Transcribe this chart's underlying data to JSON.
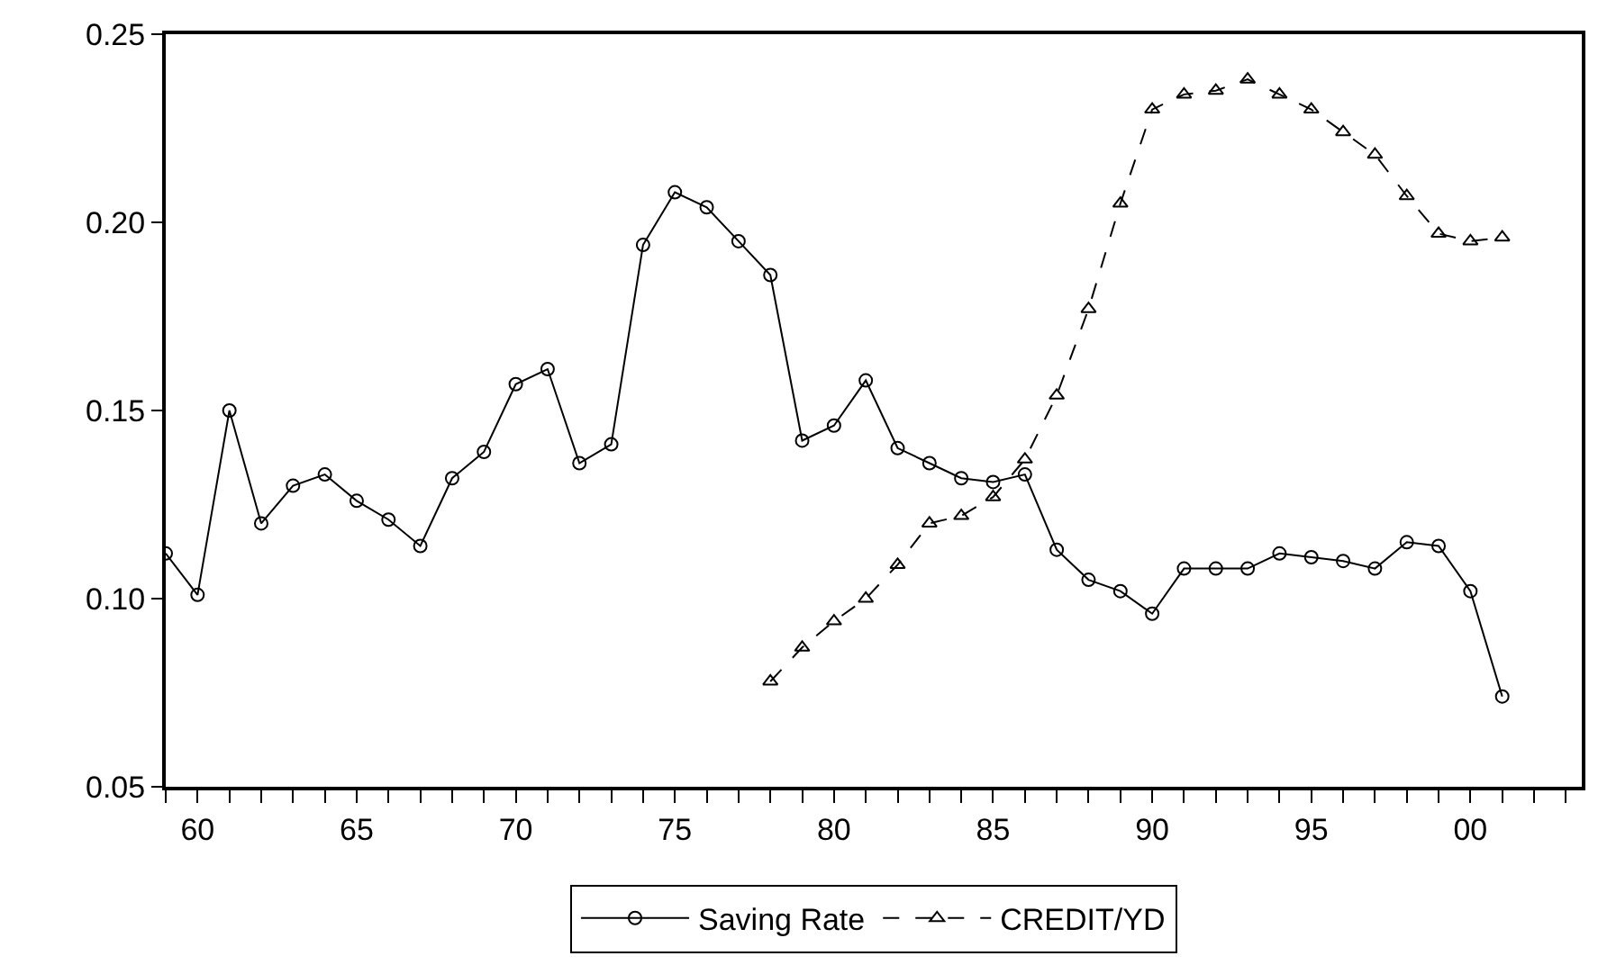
{
  "chart_data": {
    "type": "line",
    "x": [
      1959,
      1960,
      1961,
      1962,
      1963,
      1964,
      1965,
      1966,
      1967,
      1968,
      1969,
      1970,
      1971,
      1972,
      1973,
      1974,
      1975,
      1976,
      1977,
      1978,
      1979,
      1980,
      1981,
      1982,
      1983,
      1984,
      1985,
      1986,
      1987,
      1988,
      1989,
      1990,
      1991,
      1992,
      1993,
      1994,
      1995,
      1996,
      1997,
      1998,
      1999,
      2000,
      2001
    ],
    "series": [
      {
        "name": "Saving Rate",
        "color": "#000000",
        "marker": "circle",
        "line_style": "solid",
        "values": [
          0.112,
          0.101,
          0.15,
          0.12,
          0.13,
          0.133,
          0.126,
          0.121,
          0.114,
          0.132,
          0.139,
          0.157,
          0.161,
          0.136,
          0.141,
          0.194,
          0.208,
          0.204,
          0.195,
          0.186,
          0.142,
          0.146,
          0.158,
          0.14,
          0.136,
          0.132,
          0.131,
          0.133,
          0.113,
          0.105,
          0.102,
          0.096,
          0.108,
          0.108,
          0.108,
          0.112,
          0.111,
          0.11,
          0.108,
          0.115,
          0.114,
          0.102,
          0.074
        ]
      },
      {
        "name": "CREDIT/YD",
        "color": "#000000",
        "marker": "triangle",
        "line_style": "dashed",
        "x": [
          1978,
          1979,
          1980,
          1981,
          1982,
          1983,
          1984,
          1985,
          1986,
          1987,
          1988,
          1989,
          1990,
          1991,
          1992,
          1993,
          1994,
          1995,
          1996,
          1997,
          1998,
          1999,
          2000,
          2001
        ],
        "values": [
          0.078,
          0.087,
          0.094,
          0.1,
          0.109,
          0.12,
          0.122,
          0.127,
          0.137,
          0.154,
          0.177,
          0.205,
          0.23,
          0.234,
          0.235,
          0.238,
          0.234,
          0.23,
          0.224,
          0.218,
          0.207,
          0.197,
          0.195,
          0.196
        ]
      }
    ],
    "xlim": [
      1959,
      2003.5
    ],
    "xticks": [
      {
        "value": 1959,
        "label": null
      },
      {
        "value": 1960,
        "label": "60"
      },
      {
        "value": 1961,
        "label": null
      },
      {
        "value": 1962,
        "label": null
      },
      {
        "value": 1963,
        "label": null
      },
      {
        "value": 1964,
        "label": null
      },
      {
        "value": 1965,
        "label": "65"
      },
      {
        "value": 1966,
        "label": null
      },
      {
        "value": 1967,
        "label": null
      },
      {
        "value": 1968,
        "label": null
      },
      {
        "value": 1969,
        "label": null
      },
      {
        "value": 1970,
        "label": "70"
      },
      {
        "value": 1971,
        "label": null
      },
      {
        "value": 1972,
        "label": null
      },
      {
        "value": 1973,
        "label": null
      },
      {
        "value": 1974,
        "label": null
      },
      {
        "value": 1975,
        "label": "75"
      },
      {
        "value": 1976,
        "label": null
      },
      {
        "value": 1977,
        "label": null
      },
      {
        "value": 1978,
        "label": null
      },
      {
        "value": 1979,
        "label": null
      },
      {
        "value": 1980,
        "label": "80"
      },
      {
        "value": 1981,
        "label": null
      },
      {
        "value": 1982,
        "label": null
      },
      {
        "value": 1983,
        "label": null
      },
      {
        "value": 1984,
        "label": null
      },
      {
        "value": 1985,
        "label": "85"
      },
      {
        "value": 1986,
        "label": null
      },
      {
        "value": 1987,
        "label": null
      },
      {
        "value": 1988,
        "label": null
      },
      {
        "value": 1989,
        "label": null
      },
      {
        "value": 1990,
        "label": "90"
      },
      {
        "value": 1991,
        "label": null
      },
      {
        "value": 1992,
        "label": null
      },
      {
        "value": 1993,
        "label": null
      },
      {
        "value": 1994,
        "label": null
      },
      {
        "value": 1995,
        "label": "95"
      },
      {
        "value": 1996,
        "label": null
      },
      {
        "value": 1997,
        "label": null
      },
      {
        "value": 1998,
        "label": null
      },
      {
        "value": 1999,
        "label": null
      },
      {
        "value": 2000,
        "label": "00"
      },
      {
        "value": 2001,
        "label": null
      },
      {
        "value": 2002,
        "label": null
      },
      {
        "value": 2003,
        "label": null
      }
    ],
    "ylim": [
      0.05,
      0.25
    ],
    "yticks": [
      {
        "value": 0.05,
        "label": "0.05"
      },
      {
        "value": 0.1,
        "label": "0.10"
      },
      {
        "value": 0.15,
        "label": "0.15"
      },
      {
        "value": 0.2,
        "label": "0.20"
      },
      {
        "value": 0.25,
        "label": "0.25"
      }
    ],
    "legend": "bottom"
  }
}
